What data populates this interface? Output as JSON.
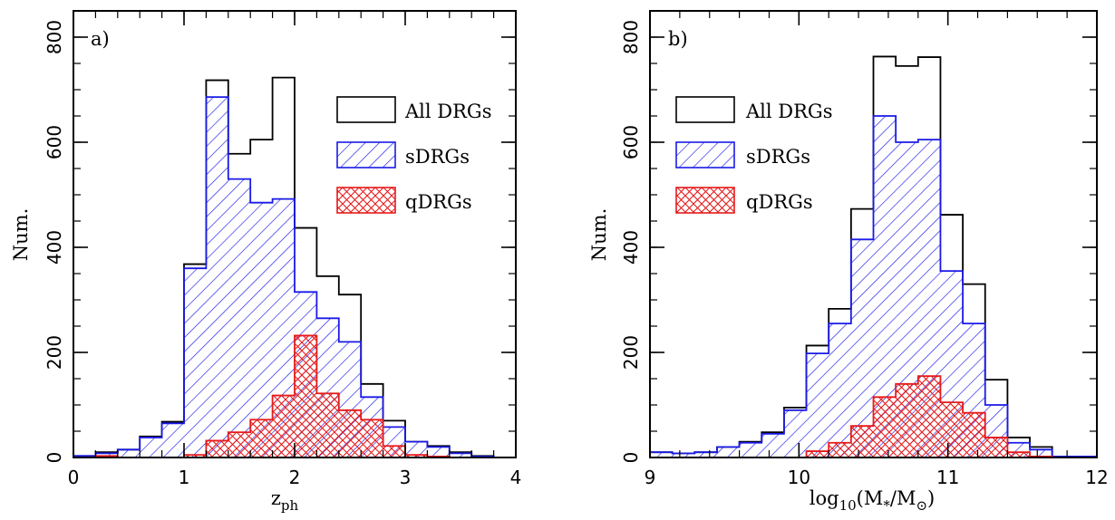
{
  "colors": {
    "all": "#000000",
    "sdrg": "#1a1ae6",
    "qdrg": "#e61a1a"
  },
  "legend": {
    "all": "All DRGs",
    "sdrg": "sDRGs",
    "qdrg": "qDRGs"
  },
  "chart_data": [
    {
      "type": "histogram",
      "panel_label": "a)",
      "xlabel": "z",
      "xlabel_sub": "ph",
      "ylabel": "Num.",
      "xlim": [
        0,
        4
      ],
      "ylim": [
        0,
        850
      ],
      "xticks": [
        "0",
        "1",
        "2",
        "3",
        "4"
      ],
      "yticks": [
        "0",
        "200",
        "400",
        "600",
        "800"
      ],
      "legend_position": "top-right",
      "bin_edges": [
        0,
        0.2,
        0.4,
        0.6,
        0.8,
        1.0,
        1.2,
        1.4,
        1.6,
        1.8,
        2.0,
        2.2,
        2.4,
        2.6,
        2.8,
        3.0,
        3.2,
        3.4,
        3.6,
        3.8,
        4.0
      ],
      "series": [
        {
          "key": "all",
          "name": "All DRGs",
          "values": [
            3,
            10,
            15,
            40,
            68,
            368,
            718,
            578,
            605,
            723,
            437,
            345,
            310,
            140,
            70,
            30,
            22,
            10,
            3,
            0
          ]
        },
        {
          "key": "sdrg",
          "name": "sDRGs",
          "values": [
            3,
            8,
            15,
            38,
            65,
            360,
            686,
            530,
            485,
            492,
            315,
            265,
            220,
            115,
            58,
            30,
            20,
            8,
            2,
            0
          ]
        },
        {
          "key": "qdrg",
          "name": "qDRGs",
          "values": [
            0,
            3,
            0,
            0,
            0,
            5,
            32,
            48,
            72,
            118,
            232,
            122,
            90,
            72,
            22,
            5,
            2,
            0,
            0,
            0
          ]
        }
      ]
    },
    {
      "type": "histogram",
      "panel_label": "b)",
      "xlabel": "log",
      "xlabel_sub": "10",
      "xlabel_rest": "(M",
      "xlabel_sub2": "*",
      "xlabel_mid": "/M",
      "xlabel_sub3": "⊙",
      "xlabel_end": ")",
      "ylabel": "Num.",
      "xlim": [
        9,
        12
      ],
      "ylim": [
        0,
        850
      ],
      "xticks": [
        "9",
        "10",
        "11",
        "12"
      ],
      "yticks": [
        "0",
        "200",
        "400",
        "600",
        "800"
      ],
      "legend_position": "top-left",
      "bin_edges": [
        9.0,
        9.15,
        9.3,
        9.45,
        9.6,
        9.75,
        9.9,
        10.05,
        10.2,
        10.35,
        10.5,
        10.65,
        10.8,
        10.95,
        11.1,
        11.25,
        11.4,
        11.55,
        11.7,
        11.85,
        12.0
      ],
      "series": [
        {
          "key": "all",
          "name": "All DRGs",
          "values": [
            10,
            8,
            10,
            20,
            30,
            48,
            95,
            213,
            283,
            473,
            763,
            745,
            762,
            462,
            330,
            148,
            38,
            20,
            2,
            2
          ]
        },
        {
          "key": "sdrg",
          "name": "sDRGs",
          "values": [
            10,
            8,
            10,
            20,
            28,
            45,
            90,
            198,
            255,
            415,
            650,
            600,
            605,
            355,
            255,
            100,
            28,
            15,
            2,
            2
          ]
        },
        {
          "key": "qdrg",
          "name": "qDRGs",
          "values": [
            0,
            0,
            0,
            0,
            0,
            0,
            0,
            12,
            28,
            60,
            115,
            140,
            155,
            105,
            85,
            38,
            10,
            2,
            0,
            0
          ]
        }
      ]
    }
  ]
}
